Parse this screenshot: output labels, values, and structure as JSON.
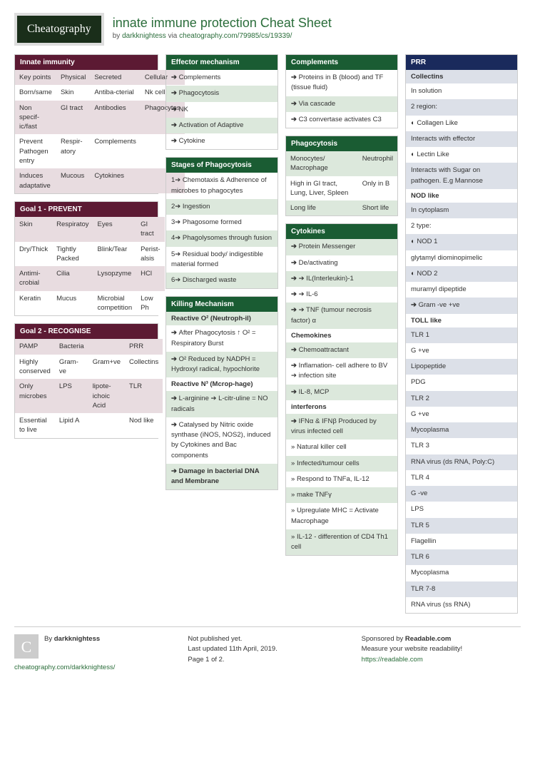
{
  "header": {
    "logo": "Cheatography",
    "title": "innate immune protection Cheat Sheet",
    "by": "by ",
    "author": "darkknightess",
    "via": " via ",
    "url": "cheatography.com/79985/cs/19339/"
  },
  "colors": {
    "maroon": "#5c1a33",
    "green": "#1a5c33",
    "navy": "#1a2a5c"
  },
  "col1": {
    "innate": {
      "title": "Innate immunity",
      "rows": [
        [
          "Key points",
          "Physical",
          "Secreted",
          "Cellular"
        ],
        [
          "Born/same",
          "Skin",
          "Antiba-cterial",
          "Nk cell"
        ],
        [
          "Non specif-ic/fast",
          "GI tract",
          "Antibodies",
          "Phagocytes"
        ],
        [
          "Prevent Pathogen entry",
          "Respir-atory",
          "Complements",
          ""
        ],
        [
          "Induces adaptative",
          "Mucous",
          "Cytokines",
          ""
        ]
      ]
    },
    "goal1": {
      "title": "Goal 1 - PREVENT",
      "rows": [
        [
          "Skin",
          "Respiratoy",
          "Eyes",
          "GI tract"
        ],
        [
          "Dry/Thick",
          "Tightly Packed",
          "Blink/Tear",
          "Perist-alsis"
        ],
        [
          "Antimi-crobial",
          "Cilia",
          "Lysopzyme",
          "HCl"
        ],
        [
          "Keratin",
          "Mucus",
          "Microbial competition",
          "Low Ph"
        ]
      ]
    },
    "goal2": {
      "title": "Goal 2 - RECOGNISE",
      "rows": [
        [
          "PAMP",
          "Bacteria",
          "",
          "PRR"
        ],
        [
          "Highly conserved",
          "Gram-ve",
          "Gram+ve",
          "Collectins"
        ],
        [
          "Only microbes",
          "LPS",
          "lipote-ichoic Acid",
          "TLR"
        ],
        [
          "Essential to live",
          "Lipid A",
          "",
          "Nod like"
        ]
      ]
    }
  },
  "col2": {
    "effector": {
      "title": "Effector mechanism",
      "items": [
        "Complements",
        "Phagocytosis",
        "NK",
        "Activation of Adaptive",
        "Cytokine"
      ]
    },
    "stages": {
      "title": "Stages of Phagocytosis",
      "items": [
        "1➔ Chemotaxis & Adherence of microbes to phagocytes",
        "2➔ Ingestion",
        "3➔ Phagosome formed",
        "4➔ Phagolysomes through fusion",
        "5➔ Residual body/ indigestible material formed",
        "6➔ Discharged waste"
      ]
    },
    "killing": {
      "title": "Killing Mechanism",
      "sub1": "Reactive O² (Neutroph-il)",
      "k1": "After Phagocytosis ↑ O² = Respiratory Burst",
      "k2": "O² Reduced by NADPH = Hydroxyl radical, hypochlorite",
      "sub2": "Reactive N³ (Mcrop-hage)",
      "k3": "L-arginine ➔ L-citr-uline = NO radicals",
      "k4": "Catalysed by Nitric oxide synthase (iNOS, NOS2), induced by Cytokines and Bac components",
      "k5": "Damage in bacterial DNA and Membrane"
    }
  },
  "col3": {
    "complements": {
      "title": "Complements",
      "items": [
        "Proteins in B (blood) and TF (tissue fluid)",
        "Via cascade",
        "C3 convertase activates C3"
      ]
    },
    "phago": {
      "title": "Phagocytosis",
      "rows": [
        [
          "Monocytes/ Macrophage",
          "Neutrophil"
        ],
        [
          "High in GI tract, Lung, Liver, Spleen",
          "Only in B"
        ],
        [
          "Long life",
          "Short life"
        ]
      ]
    },
    "cytokines": {
      "title": "Cytokines",
      "c1": "Protein Messenger",
      "c2": "De/activating",
      "c3": "➔ IL(Interleukin)-1",
      "c4": "➔ IL-6",
      "c5": "➔ TNF (tumour necrosis factor) α",
      "sub_chemo": "Chemokines",
      "ch1": "Chemoattractant",
      "ch2": "Inflamation- cell adhere to BV ➔ infection site",
      "ch3": "IL-8, MCP",
      "sub_if": "interferons",
      "if1": "IFNα & IFNβ Produced by virus infected cell",
      "if2": "Natural killer cell",
      "if3": "Infected/tumour cells",
      "if4": "Respond to TNFa, IL-12",
      "if5": "make TNFγ",
      "if6": "Upregulate MHC = Activate Macrophage",
      "if7": "IL-12 - differention of CD4 Th1 cell"
    }
  },
  "col4": {
    "prr": {
      "title": "PRR",
      "sub_coll": "Collectins",
      "co1": "In solution",
      "co2": "2 region:",
      "co3": "Collagen Like",
      "co4": "Interacts with effector",
      "co5": "Lectin Like",
      "co6": "Interacts with Sugar on pathogen. E.g Mannose",
      "sub_nod": "NOD like",
      "n1": "In cytoplasm",
      "n2": "2 type:",
      "n3": "NOD 1",
      "n4": "glytamyl diominopimelic",
      "n5": "NOD 2",
      "n6": "muramyl dipeptide",
      "n7": "Gram -ve +ve",
      "sub_toll": "TOLL like",
      "t1": "TLR 1",
      "t2": "G +ve",
      "t3": "Lipopeptide",
      "t4": "PDG",
      "t5": "TLR 2",
      "t6": "G +ve",
      "t7": "Mycoplasma",
      "t8": "TLR 3",
      "t9": "RNA virus (ds RNA, Poly:C)",
      "t10": "TLR 4",
      "t11": "G -ve",
      "t12": "LPS",
      "t13": "TLR 5",
      "t14": "Flagellin",
      "t15": "TLR 6",
      "t16": "Mycoplasma",
      "t17": "TLR 7-8",
      "t18": "RNA virus (ss RNA)"
    }
  },
  "footer": {
    "by_label": "By ",
    "author": "darkknightess",
    "author_url": "cheatography.com/darkknightess/",
    "pub1": "Not published yet.",
    "pub2": "Last updated 11th April, 2019.",
    "pub3": "Page 1 of 2.",
    "sp1": "Sponsored by ",
    "sp1b": "Readable.com",
    "sp2": "Measure your website readability!",
    "sp3": "https://readable.com"
  }
}
